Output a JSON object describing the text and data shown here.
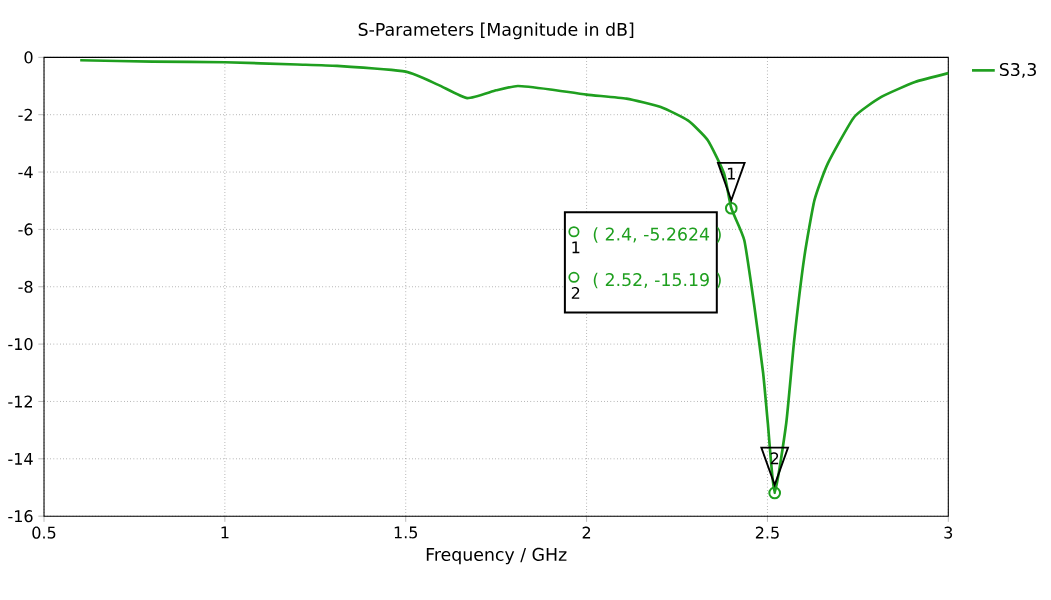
{
  "chart_data": {
    "type": "line",
    "title": "S-Parameters [Magnitude in dB]",
    "xlabel": "Frequency / GHz",
    "x": [
      0.6,
      0.8,
      1.0,
      1.2,
      1.31,
      1.5,
      1.59,
      1.67,
      1.75,
      1.81,
      1.9,
      2.0,
      2.11,
      2.205,
      2.28,
      2.335,
      2.38,
      2.4,
      2.436,
      2.464,
      2.488,
      2.501,
      2.52,
      2.552,
      2.574,
      2.602,
      2.63,
      2.667,
      2.74,
      2.815,
      2.908,
      3.0
    ],
    "series": [
      {
        "name": "S3,3",
        "color": "#1f9f1f",
        "values": [
          -0.1,
          -0.15,
          -0.17,
          -0.25,
          -0.3,
          -0.5,
          -0.96,
          -1.42,
          -1.15,
          -1.0,
          -1.12,
          -1.3,
          -1.44,
          -1.73,
          -2.2,
          -2.89,
          -4.05,
          -5.26,
          -6.38,
          -8.7,
          -11.0,
          -12.75,
          -15.19,
          -12.75,
          -9.86,
          -6.96,
          -4.98,
          -3.7,
          -2.08,
          -1.38,
          -0.86,
          -0.55
        ]
      }
    ],
    "annotations": [
      {
        "text": "1",
        "x": 2.4,
        "y": -5.2624
      },
      {
        "text": "2",
        "x": 2.52,
        "y": -15.19
      },
      "( 2.4, -5.2624 )",
      "( 2.52, -15.19 )"
    ],
    "xlim": [
      0.5,
      3
    ],
    "ylim": [
      -16,
      0
    ],
    "xticks": [
      0.5,
      1,
      1.5,
      2,
      2.5,
      3
    ],
    "yticks": [
      -16,
      -14,
      -12,
      -10,
      -8,
      -6,
      -4,
      -2,
      0
    ],
    "grid": true,
    "legend": "right",
    "line_style": "solid"
  }
}
